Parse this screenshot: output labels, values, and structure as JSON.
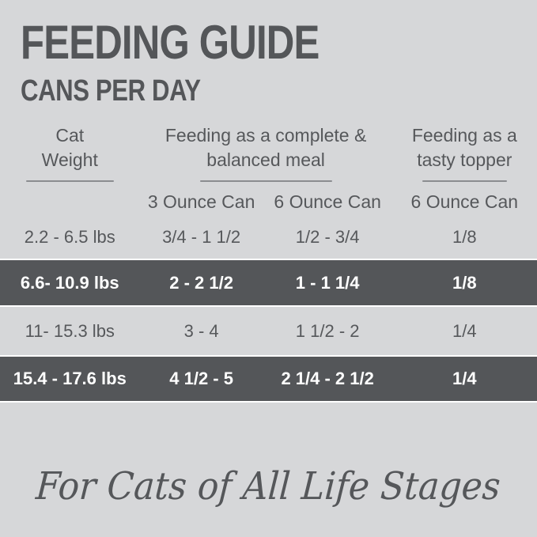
{
  "title": {
    "heading": "FEEDING GUIDE",
    "subheading": "CANS PER DAY"
  },
  "table": {
    "column_groups": [
      {
        "line1": "Cat",
        "line2": "Weight"
      },
      {
        "line1": "Feeding as a complete &",
        "line2": "balanced meal"
      },
      {
        "line1": "Feeding as a",
        "line2": "tasty topper"
      }
    ],
    "subheaders": {
      "meal_3oz": "3 Ounce Can",
      "meal_6oz": "6 Ounce Can",
      "topper_6oz": "6 Ounce Can"
    },
    "rows": [
      {
        "weight": "2.2 - 6.5 lbs",
        "meal_3oz": "3/4 - 1 1/2",
        "meal_6oz": "1/2 - 3/4",
        "topper_6oz": "1/8",
        "highlighted": false
      },
      {
        "weight": "6.6- 10.9 lbs",
        "meal_3oz": "2 - 2 1/2",
        "meal_6oz": "1 - 1 1/4",
        "topper_6oz": "1/8",
        "highlighted": true
      },
      {
        "weight": "11- 15.3 lbs",
        "meal_3oz": "3 - 4",
        "meal_6oz": "1 1/2 - 2",
        "topper_6oz": "1/4",
        "highlighted": false
      },
      {
        "weight": "15.4 - 17.6 lbs",
        "meal_3oz": "4 1/2 - 5",
        "meal_6oz": "2 1/4 - 2 1/2",
        "topper_6oz": "1/4",
        "highlighted": true
      }
    ]
  },
  "footer": {
    "tagline": "For Cats of All Life Stages"
  },
  "colors": {
    "background": "#d6d7d9",
    "dark_row_background": "#545659",
    "text": "#56585b",
    "highlight_text": "#ffffff",
    "underline": "#8b8d90"
  },
  "chart_data": {
    "type": "table",
    "title": "FEEDING GUIDE",
    "subtitle": "CANS PER DAY",
    "column_groups": [
      "Cat Weight",
      "Feeding as a complete & balanced meal",
      "Feeding as a tasty topper"
    ],
    "columns": [
      "Cat Weight",
      "3 Ounce Can",
      "6 Ounce Can",
      "6 Ounce Can"
    ],
    "rows": [
      [
        "2.2 - 6.5 lbs",
        "3/4 - 1 1/2",
        "1/2 - 3/4",
        "1/8"
      ],
      [
        "6.6- 10.9 lbs",
        "2 - 2 1/2",
        "1 - 1 1/4",
        "1/8"
      ],
      [
        "11- 15.3 lbs",
        "3 - 4",
        "1 1/2 - 2",
        "1/4"
      ],
      [
        "15.4 - 17.6 lbs",
        "4 1/2 - 5",
        "2 1/4 - 2 1/2",
        "1/4"
      ]
    ],
    "highlighted_row_indices": [
      1,
      3
    ],
    "footnote": "For Cats of All Life Stages"
  }
}
